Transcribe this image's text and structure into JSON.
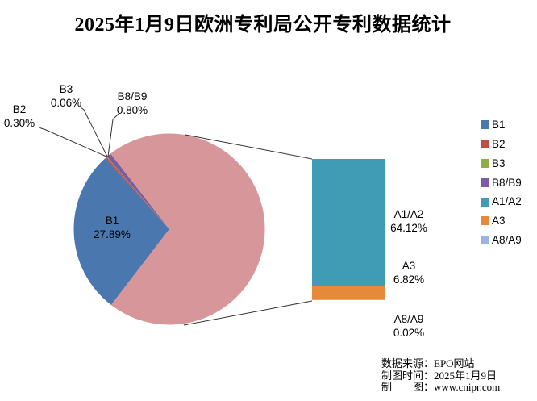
{
  "chart_data": {
    "type": "pie",
    "variant": "bar-of-pie",
    "title": "2025年1月9日欧洲专利局公开专利数据统计",
    "legend_position": "right",
    "legend": [
      "B1",
      "B2",
      "B3",
      "B8/B9",
      "A1/A2",
      "A3",
      "A8/A9"
    ],
    "pie_slices": [
      {
        "label": "B1",
        "value": 27.89,
        "pct": "27.89%",
        "color": "#4A77AE"
      },
      {
        "label": "B2",
        "value": 0.3,
        "pct": "0.30%",
        "color": "#BE4E48"
      },
      {
        "label": "B3",
        "value": 0.06,
        "pct": "0.06%",
        "color": "#8FAE49"
      },
      {
        "label": "B8/B9",
        "value": 0.8,
        "pct": "0.80%",
        "color": "#7A5DA0"
      }
    ],
    "bar_segments": [
      {
        "label": "A1/A2",
        "value": 64.12,
        "pct": "64.12%",
        "color": "#3F9CB4"
      },
      {
        "label": "A3",
        "value": 6.82,
        "pct": "6.82%",
        "color": "#E58A3A"
      },
      {
        "label": "A8/A9",
        "value": 0.02,
        "pct": "0.02%",
        "color": "#9DB2DC"
      }
    ],
    "other_slice_color": "#D79699",
    "line_color": "#333333"
  },
  "footer": {
    "source": "数据来源：EPO网站",
    "made_date": "制图时间：2025年1月9日",
    "credit": "制　　图：www.cnipr.com"
  }
}
